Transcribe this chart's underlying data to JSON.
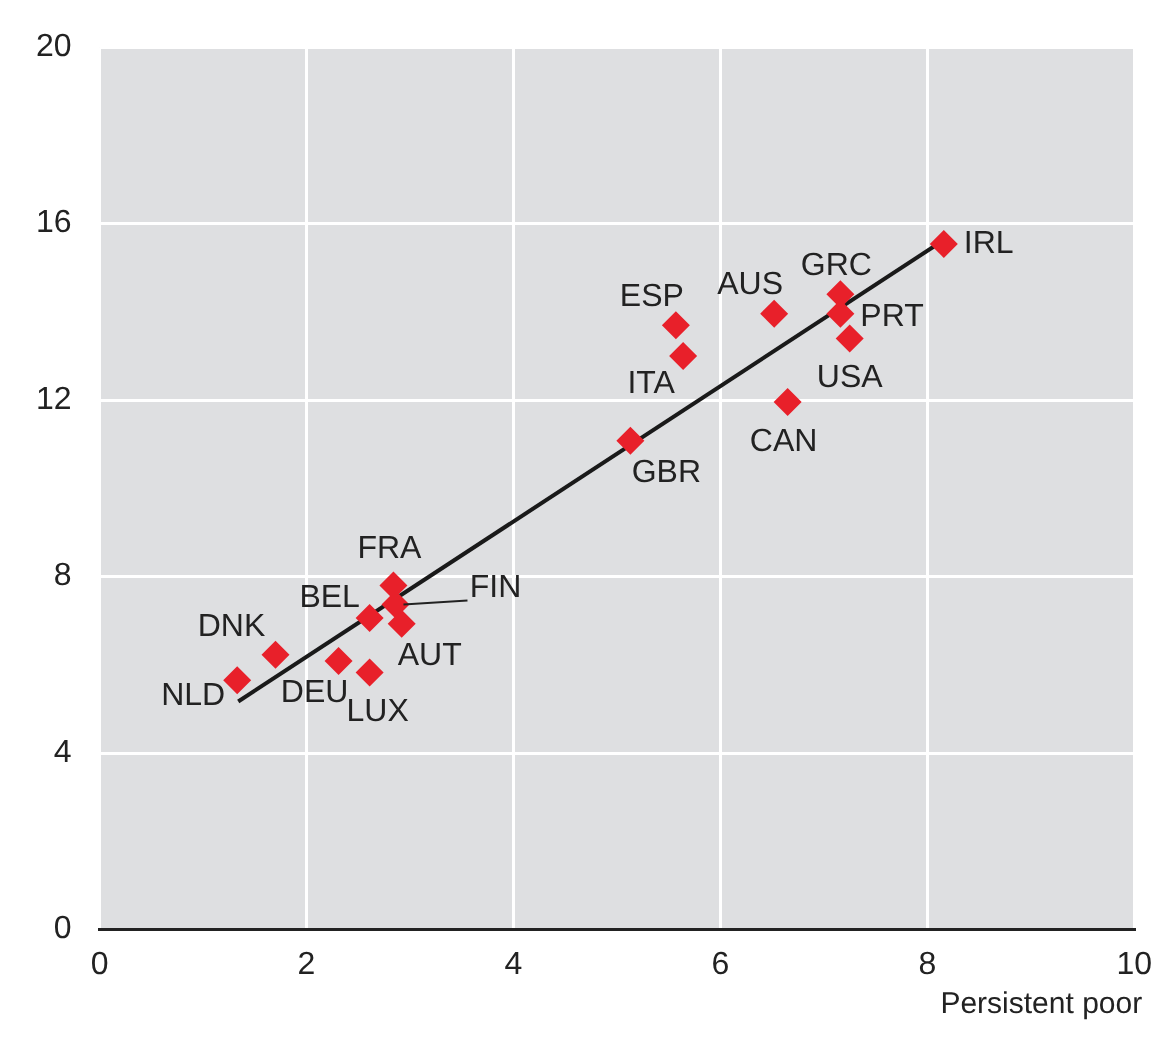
{
  "chart_data": {
    "type": "scatter",
    "xlabel": "Persistent poor",
    "xlim": [
      0,
      10
    ],
    "xticks": [
      0,
      2,
      4,
      6,
      8,
      10
    ],
    "ylim": [
      0,
      20
    ],
    "yticks": [
      0,
      4,
      8,
      12,
      16,
      20
    ],
    "grid": true,
    "legend": false,
    "series": [
      {
        "type": "scatter",
        "marker": "diamond",
        "color": "#e8202a",
        "x": [
          8.16,
          7.16,
          7.16,
          7.25,
          6.52,
          5.57,
          5.64,
          6.65,
          5.13,
          2.84,
          2.61,
          2.86,
          2.92,
          1.7,
          1.33,
          2.31,
          2.61
        ],
        "values": [
          15.54,
          14.4,
          13.96,
          13.4,
          13.96,
          13.7,
          13.0,
          11.96,
          11.08,
          7.8,
          7.06,
          7.37,
          6.93,
          6.23,
          5.65,
          6.09,
          5.83
        ]
      },
      {
        "type": "line",
        "marker": "none",
        "color": "#1a1a1a",
        "x": [
          1.34,
          8.16
        ],
        "values": [
          5.17,
          15.63
        ]
      }
    ],
    "annotations": [
      {
        "text": "IRL",
        "x": 8.16,
        "y": 15.54
      },
      {
        "text": "GRC",
        "x": 7.16,
        "y": 14.4
      },
      {
        "text": "PRT",
        "x": 7.16,
        "y": 13.96
      },
      {
        "text": "USA",
        "x": 7.25,
        "y": 13.4
      },
      {
        "text": "AUS",
        "x": 6.52,
        "y": 13.96
      },
      {
        "text": "ESP",
        "x": 5.57,
        "y": 13.7
      },
      {
        "text": "ITA",
        "x": 5.64,
        "y": 13.0
      },
      {
        "text": "CAN",
        "x": 6.65,
        "y": 11.96
      },
      {
        "text": "GBR",
        "x": 5.13,
        "y": 11.08
      },
      {
        "text": "FRA",
        "x": 2.84,
        "y": 7.8
      },
      {
        "text": "BEL",
        "x": 2.61,
        "y": 7.06
      },
      {
        "text": "FIN",
        "x": 2.86,
        "y": 7.37
      },
      {
        "text": "AUT",
        "x": 2.92,
        "y": 6.93
      },
      {
        "text": "DNK",
        "x": 1.7,
        "y": 6.23
      },
      {
        "text": "NLD",
        "x": 1.33,
        "y": 5.65
      },
      {
        "text": "DEU",
        "x": 2.31,
        "y": 6.09
      },
      {
        "text": "LUX",
        "x": 2.61,
        "y": 5.83
      }
    ]
  }
}
